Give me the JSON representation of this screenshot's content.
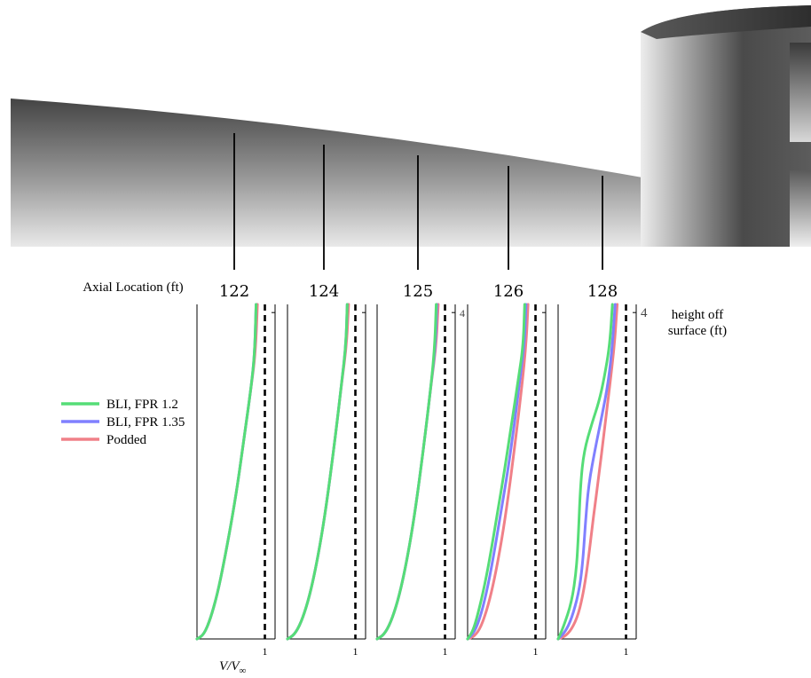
{
  "header_label": "Axial Location (ft)",
  "height_label_line1": "height off",
  "height_label_line2": "surface (ft)",
  "xlabel_parts": {
    "base": "V/V",
    "sub": "∞"
  },
  "colors": {
    "bli_1_2": "#55dd77",
    "bli_1_35": "#8080ff",
    "podded": "#f08088",
    "freestream": "#000000",
    "axis": "#000000"
  },
  "legend": [
    {
      "key": "bli_1_2",
      "label": "BLI, FPR 1.2"
    },
    {
      "key": "bli_1_35",
      "label": "BLI, FPR 1.35"
    },
    {
      "key": "podded",
      "label": "Podded"
    }
  ],
  "chart_data": {
    "type": "line",
    "x_axis": "V/V∞",
    "y_axis": "height off surface (ft)",
    "xlim": [
      0,
      1.15
    ],
    "ylim": [
      0,
      4.1
    ],
    "x_tick": {
      "value": 1,
      "label": "1"
    },
    "y_tick": {
      "value": 4,
      "label": "4"
    },
    "freestream_line": 1,
    "panels": [
      {
        "location": "122",
        "y_tick_label": "",
        "series": [
          {
            "key": "bli_1_2",
            "points": [
              [
                0,
                0
              ],
              [
                0.1,
                0.05
              ],
              [
                0.2,
                0.25
              ],
              [
                0.3,
                0.55
              ],
              [
                0.4,
                0.95
              ],
              [
                0.5,
                1.4
              ],
              [
                0.6,
                1.9
              ],
              [
                0.7,
                2.5
              ],
              [
                0.8,
                3.1
              ],
              [
                0.85,
                3.5
              ],
              [
                0.87,
                4.1
              ]
            ]
          },
          {
            "key": "bli_1_35",
            "points": [
              [
                0,
                0
              ],
              [
                0.1,
                0.05
              ],
              [
                0.2,
                0.25
              ],
              [
                0.3,
                0.55
              ],
              [
                0.4,
                0.95
              ],
              [
                0.5,
                1.4
              ],
              [
                0.6,
                1.9
              ],
              [
                0.7,
                2.5
              ],
              [
                0.8,
                3.1
              ],
              [
                0.85,
                3.5
              ],
              [
                0.87,
                4.1
              ]
            ]
          },
          {
            "key": "podded",
            "points": [
              [
                0,
                0
              ],
              [
                0.1,
                0.05
              ],
              [
                0.2,
                0.25
              ],
              [
                0.3,
                0.55
              ],
              [
                0.4,
                0.95
              ],
              [
                0.5,
                1.4
              ],
              [
                0.6,
                1.9
              ],
              [
                0.7,
                2.5
              ],
              [
                0.8,
                3.1
              ],
              [
                0.86,
                3.5
              ],
              [
                0.89,
                4.1
              ]
            ]
          }
        ]
      },
      {
        "location": "124",
        "y_tick_label": "",
        "series": [
          {
            "key": "bli_1_2",
            "points": [
              [
                0,
                0
              ],
              [
                0.1,
                0.05
              ],
              [
                0.2,
                0.2
              ],
              [
                0.3,
                0.45
              ],
              [
                0.4,
                0.8
              ],
              [
                0.5,
                1.25
              ],
              [
                0.6,
                1.8
              ],
              [
                0.7,
                2.45
              ],
              [
                0.8,
                3.15
              ],
              [
                0.86,
                3.6
              ],
              [
                0.88,
                4.1
              ]
            ]
          },
          {
            "key": "bli_1_35",
            "points": [
              [
                0,
                0
              ],
              [
                0.1,
                0.05
              ],
              [
                0.2,
                0.2
              ],
              [
                0.3,
                0.45
              ],
              [
                0.4,
                0.8
              ],
              [
                0.5,
                1.25
              ],
              [
                0.6,
                1.8
              ],
              [
                0.7,
                2.45
              ],
              [
                0.8,
                3.15
              ],
              [
                0.86,
                3.6
              ],
              [
                0.88,
                4.1
              ]
            ]
          },
          {
            "key": "podded",
            "points": [
              [
                0,
                0
              ],
              [
                0.1,
                0.05
              ],
              [
                0.2,
                0.2
              ],
              [
                0.3,
                0.45
              ],
              [
                0.4,
                0.8
              ],
              [
                0.5,
                1.25
              ],
              [
                0.6,
                1.8
              ],
              [
                0.7,
                2.45
              ],
              [
                0.8,
                3.15
              ],
              [
                0.87,
                3.6
              ],
              [
                0.9,
                4.1
              ]
            ]
          }
        ]
      },
      {
        "location": "125",
        "y_tick_label": "4",
        "series": [
          {
            "key": "bli_1_2",
            "points": [
              [
                0,
                0
              ],
              [
                0.1,
                0.05
              ],
              [
                0.2,
                0.2
              ],
              [
                0.3,
                0.45
              ],
              [
                0.4,
                0.8
              ],
              [
                0.5,
                1.25
              ],
              [
                0.6,
                1.8
              ],
              [
                0.7,
                2.45
              ],
              [
                0.8,
                3.15
              ],
              [
                0.85,
                3.6
              ],
              [
                0.87,
                4.1
              ]
            ]
          },
          {
            "key": "bli_1_35",
            "points": [
              [
                0,
                0
              ],
              [
                0.1,
                0.05
              ],
              [
                0.2,
                0.2
              ],
              [
                0.3,
                0.45
              ],
              [
                0.4,
                0.8
              ],
              [
                0.5,
                1.25
              ],
              [
                0.6,
                1.8
              ],
              [
                0.7,
                2.45
              ],
              [
                0.8,
                3.15
              ],
              [
                0.86,
                3.6
              ],
              [
                0.88,
                4.1
              ]
            ]
          },
          {
            "key": "podded",
            "points": [
              [
                0,
                0
              ],
              [
                0.1,
                0.05
              ],
              [
                0.2,
                0.2
              ],
              [
                0.3,
                0.45
              ],
              [
                0.4,
                0.8
              ],
              [
                0.5,
                1.25
              ],
              [
                0.6,
                1.8
              ],
              [
                0.7,
                2.45
              ],
              [
                0.8,
                3.15
              ],
              [
                0.87,
                3.6
              ],
              [
                0.9,
                4.1
              ]
            ]
          }
        ]
      },
      {
        "location": "126",
        "y_tick_label": "",
        "series": [
          {
            "key": "bli_1_2",
            "points": [
              [
                0,
                0
              ],
              [
                0.08,
                0.1
              ],
              [
                0.15,
                0.3
              ],
              [
                0.25,
                0.65
              ],
              [
                0.35,
                1.1
              ],
              [
                0.45,
                1.6
              ],
              [
                0.55,
                2.1
              ],
              [
                0.65,
                2.65
              ],
              [
                0.75,
                3.2
              ],
              [
                0.82,
                3.6
              ],
              [
                0.84,
                4.1
              ]
            ]
          },
          {
            "key": "bli_1_35",
            "points": [
              [
                0,
                0
              ],
              [
                0.1,
                0.08
              ],
              [
                0.2,
                0.3
              ],
              [
                0.3,
                0.65
              ],
              [
                0.4,
                1.1
              ],
              [
                0.5,
                1.6
              ],
              [
                0.6,
                2.1
              ],
              [
                0.7,
                2.7
              ],
              [
                0.78,
                3.25
              ],
              [
                0.84,
                3.65
              ],
              [
                0.86,
                4.1
              ]
            ]
          },
          {
            "key": "podded",
            "points": [
              [
                0,
                0
              ],
              [
                0.1,
                0.03
              ],
              [
                0.2,
                0.15
              ],
              [
                0.3,
                0.4
              ],
              [
                0.4,
                0.75
              ],
              [
                0.5,
                1.2
              ],
              [
                0.6,
                1.75
              ],
              [
                0.7,
                2.4
              ],
              [
                0.8,
                3.1
              ],
              [
                0.86,
                3.6
              ],
              [
                0.89,
                4.1
              ]
            ]
          }
        ]
      },
      {
        "location": "128",
        "y_tick_label": "4",
        "series": [
          {
            "key": "bli_1_2",
            "points": [
              [
                0,
                0
              ],
              [
                0.08,
                0.15
              ],
              [
                0.2,
                0.45
              ],
              [
                0.27,
                0.85
              ],
              [
                0.3,
                1.3
              ],
              [
                0.33,
                1.9
              ],
              [
                0.38,
                2.3
              ],
              [
                0.5,
                2.65
              ],
              [
                0.6,
                2.9
              ],
              [
                0.68,
                3.2
              ],
              [
                0.76,
                3.6
              ],
              [
                0.8,
                4.1
              ]
            ]
          },
          {
            "key": "bli_1_35",
            "points": [
              [
                0,
                0
              ],
              [
                0.1,
                0.08
              ],
              [
                0.2,
                0.25
              ],
              [
                0.3,
                0.55
              ],
              [
                0.36,
                0.9
              ],
              [
                0.4,
                1.4
              ],
              [
                0.45,
                1.9
              ],
              [
                0.55,
                2.35
              ],
              [
                0.65,
                2.75
              ],
              [
                0.74,
                3.15
              ],
              [
                0.8,
                3.6
              ],
              [
                0.84,
                4.1
              ]
            ]
          },
          {
            "key": "podded",
            "points": [
              [
                0,
                0
              ],
              [
                0.1,
                0.03
              ],
              [
                0.2,
                0.12
              ],
              [
                0.3,
                0.3
              ],
              [
                0.38,
                0.6
              ],
              [
                0.45,
                1.0
              ],
              [
                0.52,
                1.5
              ],
              [
                0.6,
                2.0
              ],
              [
                0.68,
                2.55
              ],
              [
                0.76,
                3.1
              ],
              [
                0.83,
                3.6
              ],
              [
                0.87,
                4.1
              ]
            ]
          }
        ]
      }
    ]
  }
}
